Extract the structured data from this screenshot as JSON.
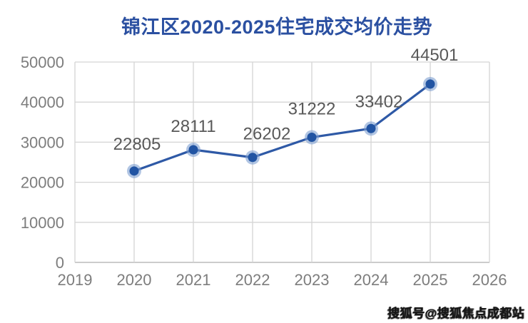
{
  "title": "锦江区2020-2025住宅成交均价走势",
  "watermark": {
    "text": "搜狐号@搜狐焦点成都站"
  },
  "chart_data": {
    "type": "line",
    "title": "锦江区2020-2025住宅成交均价走势",
    "x": [
      2020,
      2021,
      2022,
      2023,
      2024,
      2025
    ],
    "values": [
      22805,
      28111,
      26202,
      31222,
      33402,
      44501
    ],
    "data_labels": [
      "22805",
      "28111",
      "26202",
      "31222",
      "33402",
      "44501"
    ],
    "x_ticks": [
      "2019",
      "2020",
      "2021",
      "2022",
      "2023",
      "2024",
      "2025",
      "2026"
    ],
    "x_tick_values": [
      2019,
      2020,
      2021,
      2022,
      2023,
      2024,
      2025,
      2026
    ],
    "y_ticks": [
      "0",
      "10000",
      "20000",
      "30000",
      "40000",
      "50000"
    ],
    "y_tick_values": [
      0,
      10000,
      20000,
      30000,
      40000,
      50000
    ],
    "xlim": [
      2019,
      2026
    ],
    "ylim": [
      0,
      50000
    ],
    "xlabel": "",
    "ylabel": "",
    "grid": true,
    "legend": "none",
    "colors": {
      "title": "#2b50a1",
      "line": "#2e59a6",
      "marker_core": "#2154a3",
      "marker_halo": "#7d9fd0",
      "grid": "#d4d4d4",
      "axis_line": "#aeaeae",
      "axis_text": "#7d7d7d",
      "label_text": "#595959",
      "background": "#ffffff"
    }
  }
}
